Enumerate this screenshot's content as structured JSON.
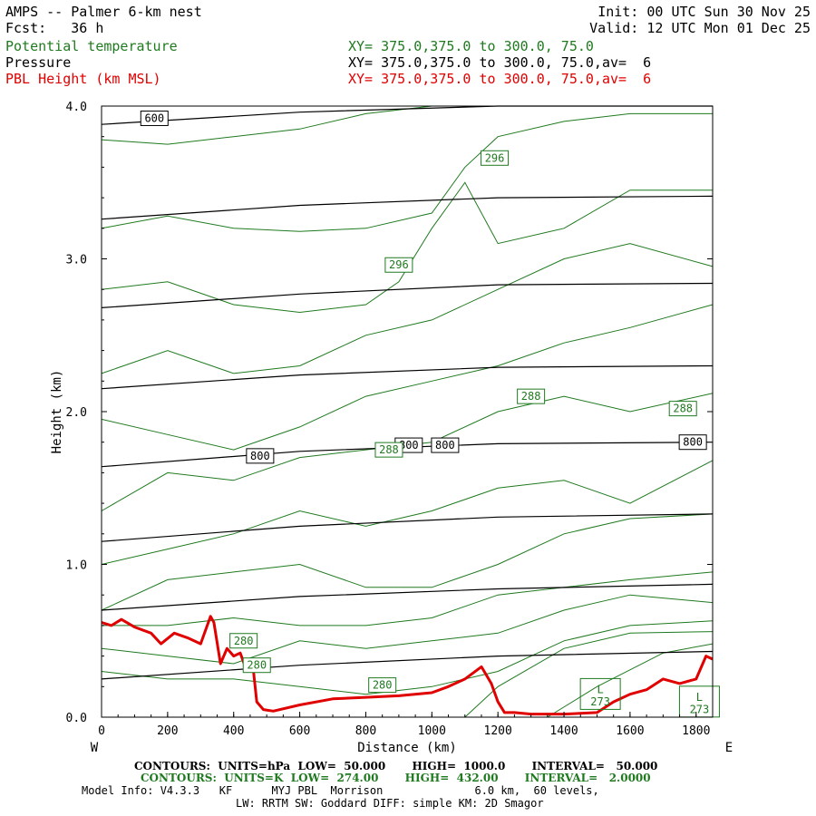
{
  "header": {
    "title": "AMPS -- Palmer 6-km nest",
    "forecast": "Fcst:   36 h",
    "init": "Init: 00 UTC Sun 30 Nov 25",
    "valid": "Valid: 12 UTC Mon 01 Dec 25",
    "legend": [
      {
        "name": "Potential temperature",
        "xy": "XY= 375.0,375.0 to 300.0, 75.0",
        "color": "#1f7a1f"
      },
      {
        "name": "Pressure",
        "xy": "XY= 375.0,375.0 to 300.0, 75.0,av=  6",
        "color": "#000000"
      },
      {
        "name": "PBL Height (km MSL)",
        "xy": "XY= 375.0,375.0 to 300.0, 75.0,av=  6",
        "color": "#e00000"
      }
    ]
  },
  "chart_data": {
    "type": "line",
    "title": "AMPS -- Palmer 6-km nest",
    "xlabel": "Distance (km)",
    "ylabel": "Height (km)",
    "xlim": [
      0,
      1850
    ],
    "ylim": [
      0,
      4.0
    ],
    "x_ticks": [
      0,
      200,
      400,
      600,
      800,
      1000,
      1200,
      1400,
      1600,
      1800
    ],
    "y_ticks": [
      0.0,
      1.0,
      2.0,
      3.0,
      4.0
    ],
    "y_tick_labels": [
      "0.0",
      "1.0",
      "2.0",
      "3.0",
      "4.0"
    ],
    "x_end_labels": {
      "left": "W",
      "right": "E"
    },
    "pressure_series": [
      {
        "x": [
          0,
          600,
          1200,
          1850
        ],
        "y": [
          0.25,
          0.34,
          0.4,
          0.43
        ]
      },
      {
        "x": [
          0,
          600,
          1200,
          1850
        ],
        "y": [
          0.7,
          0.79,
          0.84,
          0.87
        ]
      },
      {
        "x": [
          0,
          600,
          1200,
          1850
        ],
        "y": [
          1.15,
          1.25,
          1.31,
          1.33
        ]
      },
      {
        "x": [
          0,
          600,
          1200,
          1850
        ],
        "y": [
          1.64,
          1.74,
          1.79,
          1.8
        ]
      },
      {
        "x": [
          0,
          600,
          1200,
          1850
        ],
        "y": [
          2.15,
          2.24,
          2.29,
          2.3
        ]
      },
      {
        "x": [
          0,
          600,
          1200,
          1850
        ],
        "y": [
          2.68,
          2.77,
          2.83,
          2.84
        ]
      },
      {
        "x": [
          0,
          600,
          1200,
          1850
        ],
        "y": [
          3.26,
          3.35,
          3.4,
          3.41
        ]
      },
      {
        "x": [
          0,
          600,
          1200,
          1850
        ],
        "y": [
          3.88,
          3.96,
          4.0,
          4.0
        ]
      }
    ],
    "theta_series": [
      {
        "x": [
          0,
          200,
          400,
          600,
          800,
          1000,
          1200,
          1400,
          1600,
          1850
        ],
        "y": [
          3.78,
          3.75,
          3.8,
          3.85,
          3.95,
          4.0,
          4.0,
          4.0,
          4.0,
          4.0
        ]
      },
      {
        "x": [
          0,
          200,
          400,
          600,
          800,
          1000,
          1100,
          1200,
          1400,
          1600,
          1850
        ],
        "y": [
          3.2,
          3.28,
          3.2,
          3.18,
          3.2,
          3.3,
          3.6,
          3.8,
          3.9,
          3.95,
          3.95
        ]
      },
      {
        "x": [
          0,
          200,
          400,
          600,
          800,
          900,
          1000,
          1100,
          1200,
          1400,
          1600,
          1850
        ],
        "y": [
          2.8,
          2.85,
          2.7,
          2.65,
          2.7,
          2.85,
          3.2,
          3.5,
          3.1,
          3.2,
          3.45,
          3.45
        ]
      },
      {
        "x": [
          0,
          200,
          400,
          600,
          800,
          1000,
          1200,
          1400,
          1600,
          1850
        ],
        "y": [
          2.25,
          2.4,
          2.25,
          2.3,
          2.5,
          2.6,
          2.8,
          3.0,
          3.1,
          2.95
        ]
      },
      {
        "x": [
          0,
          200,
          400,
          600,
          800,
          1000,
          1200,
          1400,
          1600,
          1850
        ],
        "y": [
          1.95,
          1.85,
          1.75,
          1.9,
          2.1,
          2.2,
          2.3,
          2.45,
          2.55,
          2.7
        ]
      },
      {
        "x": [
          0,
          200,
          400,
          600,
          800,
          1000,
          1200,
          1400,
          1600,
          1850
        ],
        "y": [
          1.35,
          1.6,
          1.55,
          1.7,
          1.75,
          1.8,
          2.0,
          2.1,
          2.0,
          2.12
        ]
      },
      {
        "x": [
          0,
          200,
          400,
          600,
          800,
          1000,
          1200,
          1400,
          1600,
          1850
        ],
        "y": [
          1.0,
          1.1,
          1.2,
          1.35,
          1.25,
          1.35,
          1.5,
          1.55,
          1.4,
          1.68
        ]
      },
      {
        "x": [
          0,
          200,
          400,
          600,
          800,
          1000,
          1200,
          1400,
          1600,
          1850
        ],
        "y": [
          0.7,
          0.9,
          0.95,
          1.0,
          0.85,
          0.85,
          1.0,
          1.2,
          1.3,
          1.33
        ]
      },
      {
        "x": [
          0,
          200,
          400,
          600,
          800,
          1000,
          1200,
          1400,
          1600,
          1850
        ],
        "y": [
          0.6,
          0.6,
          0.65,
          0.6,
          0.6,
          0.65,
          0.8,
          0.85,
          0.9,
          0.95
        ]
      },
      {
        "x": [
          0,
          200,
          400,
          600,
          800,
          1000,
          1200,
          1400,
          1600,
          1850
        ],
        "y": [
          0.45,
          0.4,
          0.35,
          0.5,
          0.45,
          0.5,
          0.55,
          0.7,
          0.8,
          0.75
        ]
      },
      {
        "x": [
          0,
          200,
          400,
          600,
          800,
          1000,
          1200,
          1400,
          1600,
          1850
        ],
        "y": [
          0.3,
          0.25,
          0.25,
          0.2,
          0.15,
          0.2,
          0.3,
          0.5,
          0.6,
          0.63
        ]
      },
      {
        "x": [
          1100,
          1200,
          1400,
          1600,
          1850
        ],
        "y": [
          0.0,
          0.2,
          0.45,
          0.55,
          0.56
        ]
      },
      {
        "x": [
          1350,
          1500,
          1700,
          1850
        ],
        "y": [
          0.0,
          0.2,
          0.42,
          0.48
        ]
      }
    ],
    "pbl_height": {
      "x": [
        0,
        30,
        60,
        100,
        150,
        180,
        220,
        260,
        300,
        330,
        340,
        360,
        380,
        400,
        420,
        440,
        460,
        470,
        490,
        520,
        600,
        700,
        800,
        900,
        1000,
        1050,
        1100,
        1150,
        1180,
        1200,
        1220,
        1250,
        1300,
        1400,
        1500,
        1550,
        1600,
        1650,
        1700,
        1750,
        1800,
        1830,
        1850
      ],
      "y": [
        0.62,
        0.6,
        0.64,
        0.59,
        0.55,
        0.48,
        0.55,
        0.52,
        0.48,
        0.66,
        0.62,
        0.35,
        0.45,
        0.4,
        0.42,
        0.3,
        0.3,
        0.1,
        0.05,
        0.04,
        0.08,
        0.12,
        0.13,
        0.14,
        0.16,
        0.2,
        0.25,
        0.33,
        0.22,
        0.1,
        0.03,
        0.03,
        0.02,
        0.02,
        0.03,
        0.1,
        0.15,
        0.18,
        0.25,
        0.22,
        0.25,
        0.4,
        0.38
      ]
    },
    "pressure_labels": [
      {
        "text": "600",
        "x": 160,
        "y": 3.92
      },
      {
        "text": "800",
        "x": 480,
        "y": 1.71
      },
      {
        "text": "800",
        "x": 930,
        "y": 1.78
      },
      {
        "text": "800",
        "x": 1040,
        "y": 1.78
      },
      {
        "text": "800",
        "x": 1790,
        "y": 1.8
      }
    ],
    "theta_labels": [
      {
        "text": "296",
        "x": 1190,
        "y": 3.66
      },
      {
        "text": "296",
        "x": 900,
        "y": 2.96
      },
      {
        "text": "288",
        "x": 1300,
        "y": 2.1
      },
      {
        "text": "288",
        "x": 1760,
        "y": 2.02
      },
      {
        "text": "288",
        "x": 870,
        "y": 1.75
      },
      {
        "text": "280",
        "x": 430,
        "y": 0.5
      },
      {
        "text": "280",
        "x": 470,
        "y": 0.34
      },
      {
        "text": "280",
        "x": 850,
        "y": 0.21
      }
    ],
    "low_labels": [
      {
        "text": "L",
        "x": 1510,
        "y": 0.18
      },
      {
        "text": "273",
        "x": 1510,
        "y": 0.1
      },
      {
        "text": "L",
        "x": 1810,
        "y": 0.13
      },
      {
        "text": "273",
        "x": 1810,
        "y": 0.05
      }
    ]
  },
  "footer": {
    "line1": "CONTOURS:  UNITS=hPa  LOW=  50.000       HIGH=  1000.0       INTERVAL=   50.000",
    "line2": "CONTOURS:  UNITS=K  LOW=  274.00       HIGH=  432.00       INTERVAL=   2.0000",
    "line3": "Model Info: V4.3.3   KF      MYJ PBL  Morrison              6.0 km,  60 levels,",
    "line4": "LW: RRTM SW: Goddard DIFF: simple KM: 2D Smagor"
  }
}
